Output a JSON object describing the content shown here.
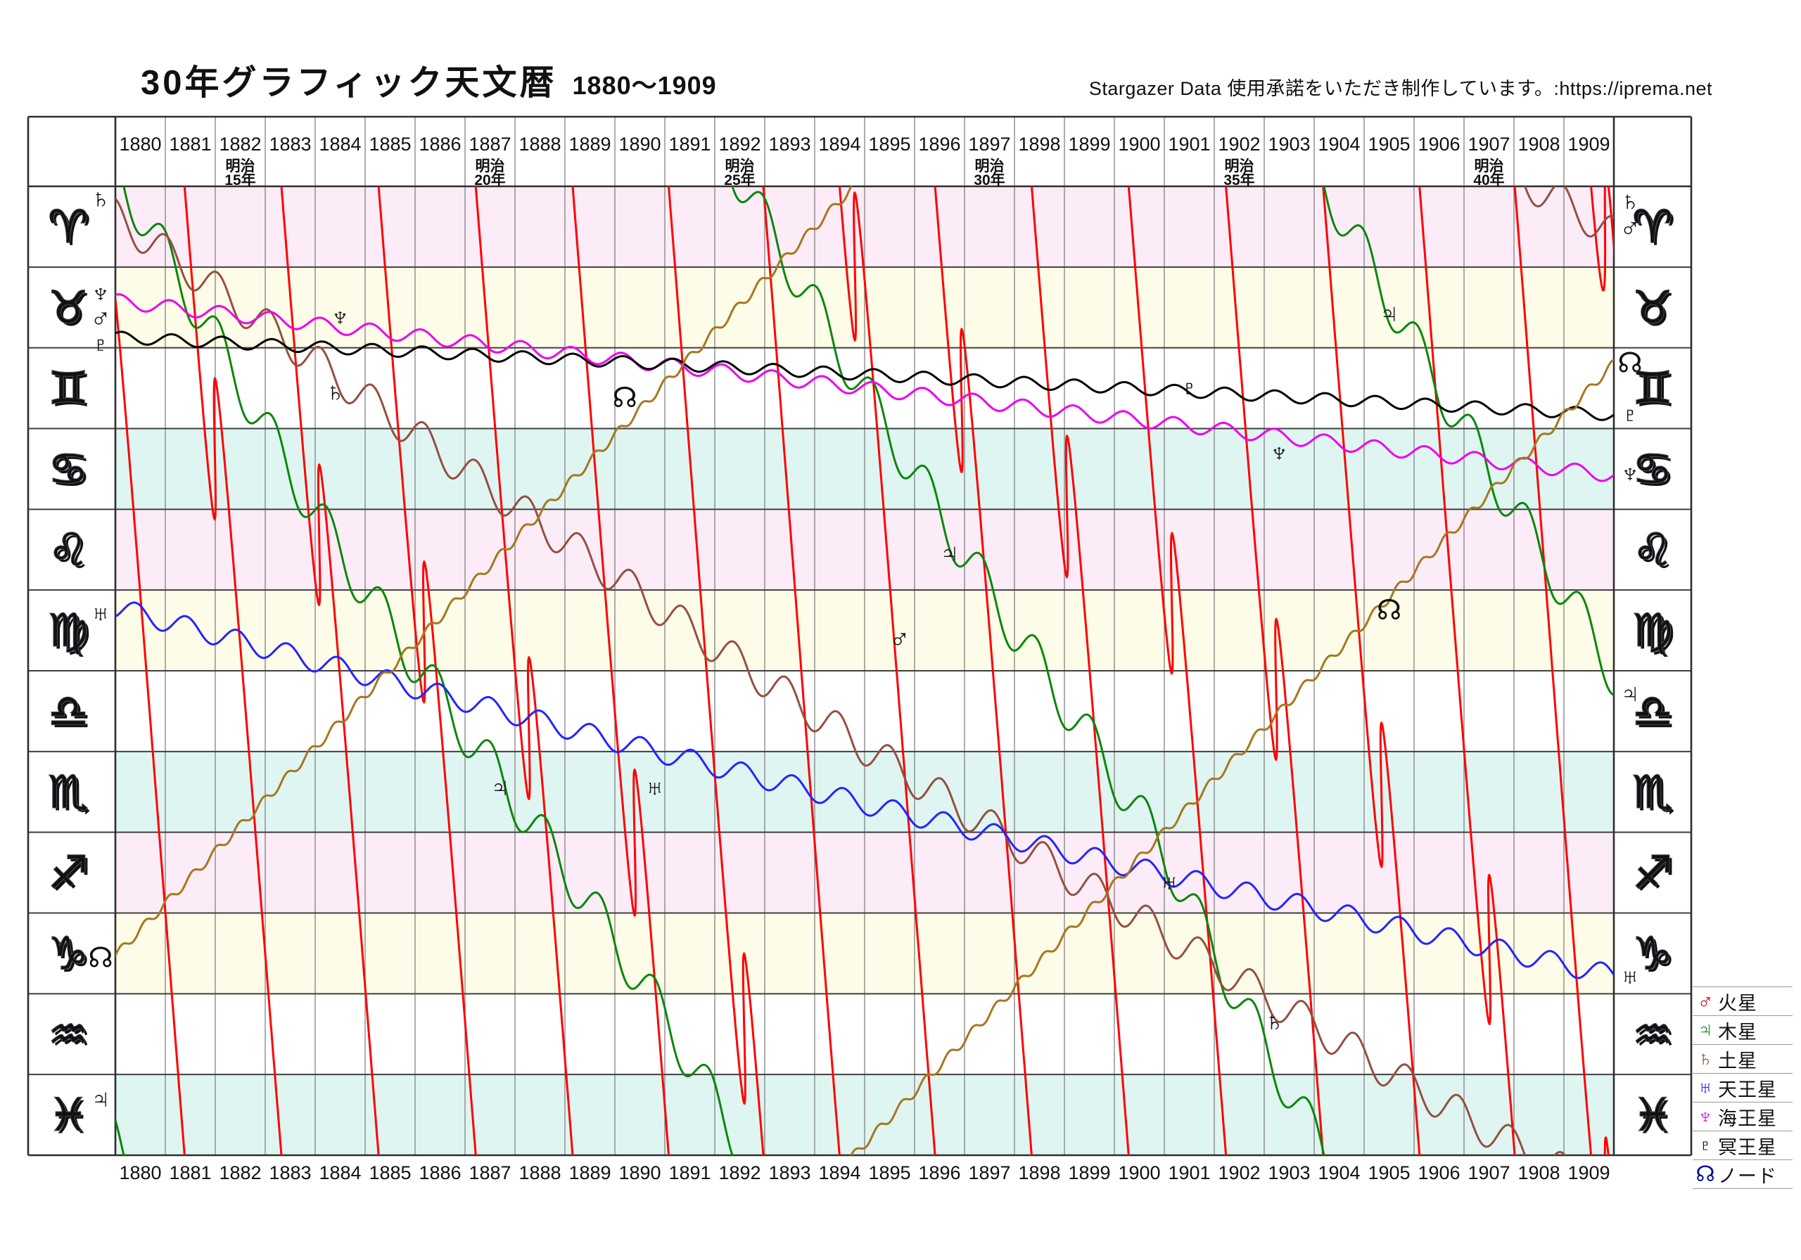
{
  "title": {
    "main": "30年グラフィック天文暦",
    "range": "1880〜1909"
  },
  "credit": "Stargazer Data 使用承諾をいただき制作しています。:https://iprema.net",
  "axis": {
    "year_start": 1880,
    "year_end": 1909,
    "era_labels": [
      {
        "year": 1882,
        "lines": [
          "明治",
          "15年"
        ]
      },
      {
        "year": 1887,
        "lines": [
          "明治",
          "20年"
        ]
      },
      {
        "year": 1892,
        "lines": [
          "明治",
          "25年"
        ]
      },
      {
        "year": 1897,
        "lines": [
          "明治",
          "30年"
        ]
      },
      {
        "year": 1902,
        "lines": [
          "明治",
          "35年"
        ]
      },
      {
        "year": 1907,
        "lines": [
          "明治",
          "40年"
        ]
      }
    ]
  },
  "zodiac": {
    "band_palette": [
      "#fbecf7",
      "#fcfce8",
      "#ffffff",
      "#dff5f2"
    ],
    "signs": [
      {
        "name": "aries",
        "glyph": "♈",
        "color": "#f11a2a"
      },
      {
        "name": "taurus",
        "glyph": "♉",
        "color": "#f07814"
      },
      {
        "name": "gemini",
        "glyph": "♊",
        "color": "#9a9a9a"
      },
      {
        "name": "cancer",
        "glyph": "♋",
        "color": "#21e35f"
      },
      {
        "name": "leo",
        "glyph": "♌",
        "color": "#f11a2a"
      },
      {
        "name": "virgo",
        "glyph": "♍",
        "color": "#f07814"
      },
      {
        "name": "libra",
        "glyph": "♎",
        "color": "#9a9a9a"
      },
      {
        "name": "scorpio",
        "glyph": "♏",
        "color": "#21e35f"
      },
      {
        "name": "sagittarius",
        "glyph": "♐",
        "color": "#f22545"
      },
      {
        "name": "capricorn",
        "glyph": "♑",
        "color": "#f07814"
      },
      {
        "name": "aquarius",
        "glyph": "♒",
        "color": "#9a9a9a"
      },
      {
        "name": "pisces",
        "glyph": "♓",
        "color": "#21e35f"
      }
    ]
  },
  "legend": {
    "items": [
      {
        "name": "mars",
        "glyph": "♂",
        "label": "火星",
        "color": "#e00000"
      },
      {
        "name": "jupiter",
        "glyph": "♃",
        "label": "木星",
        "color": "#128312"
      },
      {
        "name": "saturn",
        "glyph": "♄",
        "label": "土星",
        "color": "#8b5a2b"
      },
      {
        "name": "uranus",
        "glyph": "♅",
        "label": "天王星",
        "color": "#2020f0"
      },
      {
        "name": "neptune",
        "glyph": "♆",
        "label": "海王星",
        "color": "#d816d8"
      },
      {
        "name": "pluto",
        "glyph": "♇",
        "label": "冥王星",
        "color": "#13132e"
      },
      {
        "name": "node",
        "glyph": "☊",
        "label": "ノード",
        "color": "#001090"
      }
    ]
  },
  "chart_data": {
    "type": "line",
    "title": "30年グラフィック天文暦 1880〜1909",
    "x_range": [
      1880,
      1910
    ],
    "x_tick_years": [
      1880,
      1881,
      1882,
      1883,
      1884,
      1885,
      1886,
      1887,
      1888,
      1889,
      1890,
      1891,
      1892,
      1893,
      1894,
      1895,
      1896,
      1897,
      1898,
      1899,
      1900,
      1901,
      1902,
      1903,
      1904,
      1905,
      1906,
      1907,
      1908,
      1909
    ],
    "y_axis_signs_top_to_bottom": [
      "aries",
      "taurus",
      "gemini",
      "cancer",
      "leo",
      "virgo",
      "libra",
      "scorpio",
      "sagittarius",
      "capricorn",
      "aquarius",
      "pisces"
    ],
    "y_unit": "ecliptic longitude in signs (0 = 0° Aries at top, 12 = 30° Pisces at bottom)",
    "grid": true,
    "series": [
      {
        "name": "mars",
        "label": "火星",
        "line_color": "#ff0000",
        "mode": "catmull",
        "points": [
          [
            1879.5,
            0.4
          ],
          [
            1879.775,
            2.16
          ],
          [
            1880.025,
            1.56
          ],
          [
            1881.865,
            15.54
          ],
          [
            1882.115,
            14.94
          ],
          [
            1883.955,
            28.62
          ],
          [
            1884.205,
            28.02
          ],
          [
            1886.055,
            41.82
          ],
          [
            1886.305,
            41.22
          ],
          [
            1888.155,
            55.02
          ],
          [
            1888.405,
            54.42
          ],
          [
            1890.275,
            68.46
          ],
          [
            1890.525,
            67.86
          ],
          [
            1892.465,
            82.74
          ],
          [
            1892.715,
            82.14
          ],
          [
            1894.675,
            97.26
          ],
          [
            1894.925,
            96.66
          ],
          [
            1896.815,
            110.94
          ],
          [
            1897.065,
            110.34
          ],
          [
            1898.925,
            124.26
          ],
          [
            1899.175,
            123.66
          ],
          [
            1901.025,
            137.46
          ],
          [
            1901.275,
            136.86
          ],
          [
            1903.115,
            150.54
          ],
          [
            1903.365,
            149.94
          ],
          [
            1905.225,
            163.86
          ],
          [
            1905.475,
            163.26
          ],
          [
            1907.385,
            177.78
          ],
          [
            1907.635,
            177.18
          ],
          [
            1909.605,
            192.42
          ],
          [
            1909.855,
            191.82
          ],
          [
            1910.3,
            195.18
          ]
        ]
      },
      {
        "name": "jupiter",
        "label": "木星",
        "line_color": "#0a870a",
        "mode": "linear",
        "wiggle": {
          "amp": 0.3,
          "period": 1.092,
          "phase": 1880.7
        },
        "points": [
          [
            1880,
            11.8
          ],
          [
            1881,
            12.85
          ],
          [
            1882,
            13.9
          ],
          [
            1883,
            15.0
          ],
          [
            1884,
            16.05
          ],
          [
            1885,
            17.0
          ],
          [
            1886,
            17.9
          ],
          [
            1887,
            18.75
          ],
          [
            1888,
            19.6
          ],
          [
            1889,
            20.45
          ],
          [
            1890,
            21.35
          ],
          [
            1891,
            22.3
          ],
          [
            1892,
            23.35
          ],
          [
            1893,
            24.45
          ],
          [
            1894,
            25.5
          ],
          [
            1895,
            26.55
          ],
          [
            1896,
            27.55
          ],
          [
            1897,
            28.55
          ],
          [
            1898,
            29.5
          ],
          [
            1899,
            30.4
          ],
          [
            1900,
            31.3
          ],
          [
            1901,
            32.25
          ],
          [
            1902,
            33.5
          ],
          [
            1903,
            34.65
          ],
          [
            1904,
            35.75
          ],
          [
            1905,
            36.85
          ],
          [
            1906,
            37.95
          ],
          [
            1907,
            39.0
          ],
          [
            1908,
            40.0
          ],
          [
            1909,
            41.0
          ],
          [
            1910.3,
            42.35
          ]
        ]
      },
      {
        "name": "saturn",
        "label": "土星",
        "line_color": "#94503f",
        "mode": "linear",
        "wiggle": {
          "amp": 0.22,
          "period": 1.0352,
          "phase": 1880.75
        },
        "points": [
          [
            1880,
            0.37
          ],
          [
            1881,
            0.82
          ],
          [
            1882,
            1.27
          ],
          [
            1883,
            1.72
          ],
          [
            1884,
            2.17
          ],
          [
            1885,
            2.62
          ],
          [
            1886,
            3.07
          ],
          [
            1887,
            3.52
          ],
          [
            1888,
            3.96
          ],
          [
            1889,
            4.4
          ],
          [
            1890,
            4.84
          ],
          [
            1891,
            5.27
          ],
          [
            1892,
            5.7
          ],
          [
            1893,
            6.12
          ],
          [
            1894,
            6.54
          ],
          [
            1895,
            6.95
          ],
          [
            1896,
            7.35
          ],
          [
            1897,
            7.74
          ],
          [
            1898,
            8.12
          ],
          [
            1899,
            8.5
          ],
          [
            1900,
            8.88
          ],
          [
            1901,
            9.26
          ],
          [
            1902,
            9.64
          ],
          [
            1903,
            10.02
          ],
          [
            1904,
            10.4
          ],
          [
            1905,
            10.78
          ],
          [
            1906,
            11.16
          ],
          [
            1907,
            11.52
          ],
          [
            1908,
            11.88
          ],
          [
            1909,
            12.2
          ],
          [
            1910.3,
            12.72
          ]
        ]
      },
      {
        "name": "uranus",
        "label": "天王星",
        "line_color": "#2424ff",
        "mode": "linear",
        "wiggle": {
          "amp": 0.13,
          "period": 1.0121,
          "phase": 1880.155
        },
        "points": [
          [
            1880,
            5.22
          ],
          [
            1885,
            6.05
          ],
          [
            1890,
            6.87
          ],
          [
            1895,
            7.65
          ],
          [
            1900,
            8.38
          ],
          [
            1905,
            9.08
          ],
          [
            1910.3,
            9.82
          ]
        ]
      },
      {
        "name": "neptune",
        "label": "海王星",
        "line_color": "#ee00ee",
        "mode": "linear",
        "wiggle": {
          "amp": 0.088,
          "period": 1.0053,
          "phase": 1880.84
        },
        "points": [
          [
            1880,
            1.42
          ],
          [
            1890,
            2.14
          ],
          [
            1900,
            2.86
          ],
          [
            1910.3,
            3.6
          ]
        ]
      },
      {
        "name": "pluto",
        "label": "冥王星",
        "line_color": "#000000",
        "mode": "linear",
        "wiggle": {
          "amp": 0.072,
          "period": 1.0041,
          "phase": 1880.88
        },
        "points": [
          [
            1880,
            1.87
          ],
          [
            1890,
            2.17
          ],
          [
            1900,
            2.49
          ],
          [
            1910.3,
            2.84
          ]
        ]
      },
      {
        "name": "node",
        "label": "ノード",
        "line_color": "#a6781e",
        "mode": "linear",
        "wiggle": {
          "amp": 0.055,
          "period": 0.4735,
          "phase": 1880.0
        },
        "points": [
          [
            1880,
            9.53
          ],
          [
            1910.3,
            -10.0
          ]
        ]
      }
    ],
    "glyph_markers": {
      "in_chart": [
        {
          "planet": "neptune",
          "glyph": "♆",
          "t": 1884.5,
          "sign": 1.62
        },
        {
          "planet": "saturn",
          "glyph": "♄",
          "t": 1884.4,
          "sign": 2.55
        },
        {
          "planet": "node",
          "glyph": "☊",
          "t": 1890.2,
          "sign": 2.62
        },
        {
          "planet": "pluto",
          "glyph": "♇",
          "t": 1901.5,
          "sign": 2.5
        },
        {
          "planet": "neptune",
          "glyph": "♆",
          "t": 1903.3,
          "sign": 3.3
        },
        {
          "planet": "jupiter",
          "glyph": "♃",
          "t": 1896.7,
          "sign": 4.55
        },
        {
          "planet": "mars",
          "glyph": "♂",
          "t": 1895.7,
          "sign": 5.6
        },
        {
          "planet": "node",
          "glyph": "☊",
          "t": 1905.5,
          "sign": 5.25
        },
        {
          "planet": "jupiter",
          "glyph": "♃",
          "t": 1887.7,
          "sign": 7.45
        },
        {
          "planet": "uranus",
          "glyph": "♅",
          "t": 1890.8,
          "sign": 7.45
        },
        {
          "planet": "uranus",
          "glyph": "♅",
          "t": 1901.1,
          "sign": 8.62
        },
        {
          "planet": "saturn",
          "glyph": "♄",
          "t": 1903.2,
          "sign": 10.35
        },
        {
          "planet": "jupiter",
          "glyph": "♃",
          "t": 1905.5,
          "sign": 1.58
        }
      ],
      "left_margin": [
        {
          "planet": "saturn",
          "glyph": "♄",
          "sign": 0.15
        },
        {
          "planet": "neptune",
          "glyph": "♆",
          "sign": 1.32
        },
        {
          "planet": "mars",
          "glyph": "♂",
          "sign": 1.62
        },
        {
          "planet": "pluto",
          "glyph": "♇",
          "sign": 1.95
        },
        {
          "planet": "uranus",
          "glyph": "♅",
          "sign": 5.28
        },
        {
          "planet": "node",
          "glyph": "☊",
          "sign": 9.55
        },
        {
          "planet": "jupiter",
          "glyph": "♃",
          "sign": 11.3
        }
      ],
      "right_margin": [
        {
          "planet": "saturn",
          "glyph": "♄",
          "sign": 0.18
        },
        {
          "planet": "mars",
          "glyph": "♂",
          "sign": 0.5
        },
        {
          "planet": "node",
          "glyph": "☊",
          "sign": 2.18
        },
        {
          "planet": "pluto",
          "glyph": "♇",
          "sign": 2.82
        },
        {
          "planet": "neptune",
          "glyph": "♆",
          "sign": 3.55
        },
        {
          "planet": "jupiter",
          "glyph": "♃",
          "sign": 6.28
        },
        {
          "planet": "uranus",
          "glyph": "♅",
          "sign": 9.78
        }
      ]
    }
  },
  "glyph_colors": {
    "mars": "#e00000",
    "jupiter": "#128312",
    "saturn": "#8b5a2b",
    "uranus": "#2020f0",
    "neptune": "#d816d8",
    "pluto": "#13132e",
    "node": "#001090"
  }
}
